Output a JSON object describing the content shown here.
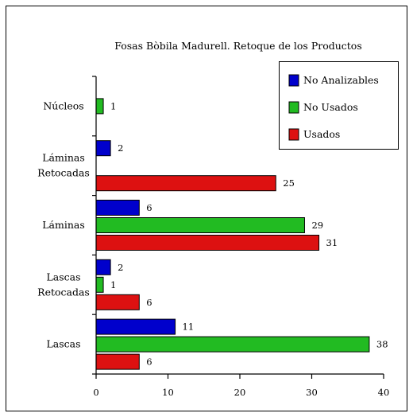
{
  "chart_data": {
    "type": "bar",
    "orientation": "horizontal",
    "title": "Fosas Bòbila Madurell. Retoque de los Productos",
    "xlabel": "",
    "ylabel": "",
    "xlim": [
      0,
      40
    ],
    "xticks": [
      0,
      10,
      20,
      30,
      40
    ],
    "grid": false,
    "legend_position": "top-right",
    "categories": [
      [
        "Núcleos"
      ],
      [
        "Láminas",
        "Retocadas"
      ],
      [
        "Láminas"
      ],
      [
        "Lascas",
        "Retocadas"
      ],
      [
        "Lascas"
      ]
    ],
    "series": [
      {
        "name": "No Analizables",
        "color": "#0000cc",
        "values": [
          null,
          2,
          6,
          2,
          11
        ]
      },
      {
        "name": "No Usados",
        "color": "#22bb22",
        "values": [
          1,
          null,
          29,
          1,
          38
        ]
      },
      {
        "name": "Usados",
        "color": "#dd1111",
        "values": [
          null,
          25,
          31,
          6,
          6
        ]
      }
    ]
  }
}
